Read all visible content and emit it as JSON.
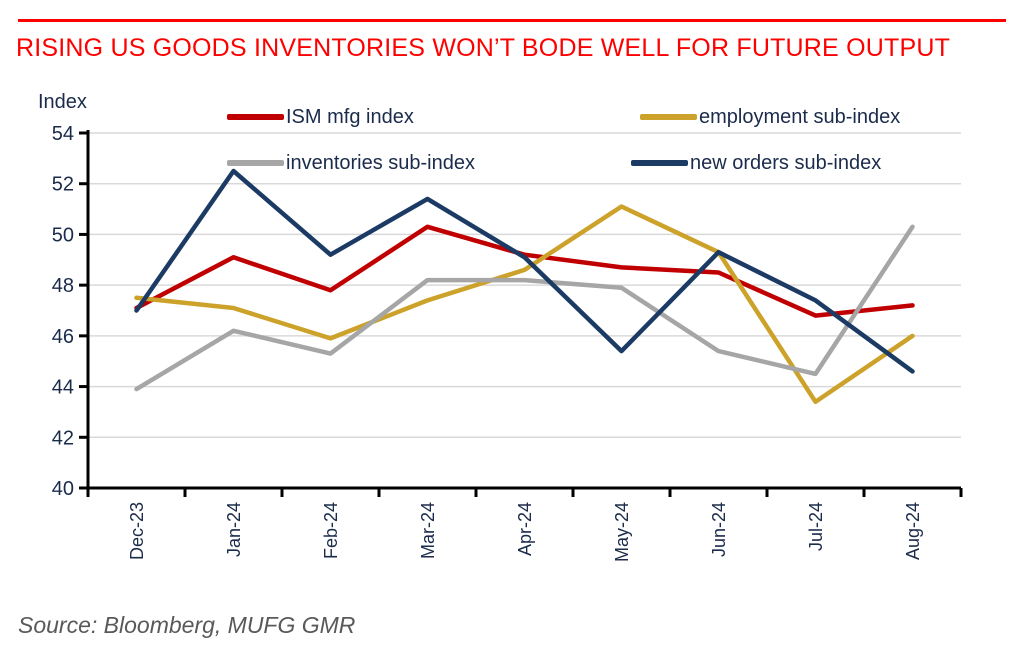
{
  "header": {
    "title": "RISING US GOODS INVENTORIES WON’T BODE WELL FOR FUTURE OUTPUT",
    "title_color": "#fe0000",
    "rule_color": "#fe0000"
  },
  "source": {
    "text": "Source: Bloomberg, MUFG GMR"
  },
  "chart_data": {
    "type": "line",
    "corner_axis_label": "Index",
    "categories": [
      "Dec-23",
      "Jan-24",
      "Feb-24",
      "Mar-24",
      "Apr-24",
      "May-24",
      "Jun-24",
      "Jul-24",
      "Aug-24"
    ],
    "series": [
      {
        "name": "ISM mfg index",
        "color": "#c00000",
        "values": [
          47.1,
          49.1,
          47.8,
          50.3,
          49.2,
          48.7,
          48.5,
          46.8,
          47.2
        ]
      },
      {
        "name": "employment sub-index",
        "color": "#cca22b",
        "values": [
          47.5,
          47.1,
          45.9,
          47.4,
          48.6,
          51.1,
          49.3,
          43.4,
          46.0
        ]
      },
      {
        "name": "inventories sub-index",
        "color": "#a6a6a6",
        "values": [
          43.9,
          46.2,
          45.3,
          48.2,
          48.2,
          47.9,
          45.4,
          44.5,
          50.3
        ]
      },
      {
        "name": "new orders sub-index",
        "color": "#1b3a64",
        "values": [
          47.0,
          52.5,
          49.2,
          51.4,
          49.1,
          45.4,
          49.3,
          47.4,
          44.6
        ]
      }
    ],
    "ylim": [
      40,
      54
    ],
    "yticks": [
      40,
      42,
      44,
      46,
      48,
      50,
      52,
      54
    ],
    "grid": true,
    "legend_position": "top-inside",
    "colors": {
      "grid": "#d9d9d9",
      "axis": "#000000",
      "tick_text": "#1b2b4b"
    }
  }
}
